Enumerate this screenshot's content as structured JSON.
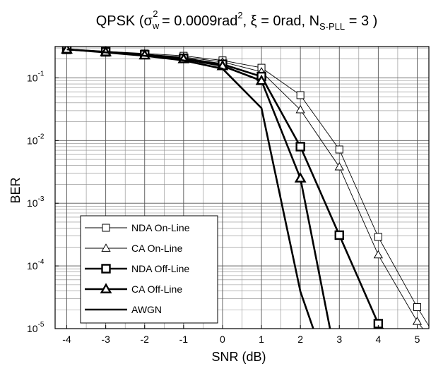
{
  "chart_data": {
    "type": "line",
    "title": {
      "prefix": "QPSK (",
      "sigma": "σ",
      "sigma_sub": "w",
      "sigma_sup": "2",
      "eq1": " = 0.0009rad",
      "rad_sup": "2",
      "xi_part": ", ξ = 0rad, N",
      "n_sub": "S-PLL",
      "suffix": " = 3 )"
    },
    "xlabel": "SNR (dB)",
    "ylabel": "BER",
    "xlim": [
      -4.3,
      5.3
    ],
    "ylim_log10": [
      -5,
      -0.5
    ],
    "y_scale": "log",
    "grid": true,
    "x_ticks": [
      -4,
      -3,
      -2,
      -1,
      0,
      1,
      2,
      3,
      4,
      5
    ],
    "x_tick_labels": [
      "-4",
      "-3",
      "-2",
      "-1",
      "0",
      "1",
      "2",
      "3",
      "4",
      "5"
    ],
    "y_ticks": [
      {
        "base": "10",
        "exp": "-1",
        "log": -1
      },
      {
        "base": "10",
        "exp": "-2",
        "log": -2
      },
      {
        "base": "10",
        "exp": "-3",
        "log": -3
      },
      {
        "base": "10",
        "exp": "-4",
        "log": -4
      },
      {
        "base": "10",
        "exp": "-5",
        "log": -5
      }
    ],
    "legend_position": "lower-left",
    "series": [
      {
        "name": "NDA On-Line",
        "marker": "square",
        "thick": false,
        "x": [
          -4,
          -3,
          -2,
          -1,
          0,
          1,
          2,
          3,
          4,
          5,
          5.3
        ],
        "y": [
          0.285,
          0.265,
          0.245,
          0.225,
          0.19,
          0.145,
          0.053,
          0.0072,
          0.00029,
          2.2e-05,
          1.1e-05
        ]
      },
      {
        "name": "CA On-Line",
        "marker": "triangle",
        "thick": false,
        "x": [
          -4,
          -3,
          -2,
          -1,
          0,
          1,
          2,
          3,
          4,
          5,
          5.3
        ],
        "y": [
          0.285,
          0.262,
          0.24,
          0.215,
          0.18,
          0.125,
          0.031,
          0.0038,
          0.00015,
          1.3e-05,
          7.5e-06
        ]
      },
      {
        "name": "NDA Off-Line",
        "marker": "square",
        "thick": true,
        "x": [
          -4,
          -3,
          -2,
          -1,
          0,
          1,
          2,
          3,
          4,
          4.3
        ],
        "y": [
          0.285,
          0.26,
          0.235,
          0.205,
          0.165,
          0.105,
          0.008,
          0.00031,
          1.2e-05,
          7.5e-06
        ]
      },
      {
        "name": "CA Off-Line",
        "marker": "triangle",
        "thick": true,
        "x": [
          -4,
          -3,
          -2,
          -1,
          0,
          1,
          2,
          2.8
        ],
        "y": [
          0.285,
          0.258,
          0.23,
          0.2,
          0.155,
          0.09,
          0.0025,
          7.5e-06
        ]
      },
      {
        "name": "AWGN",
        "marker": "none",
        "thick": true,
        "x": [
          -4,
          -3,
          -2,
          -1,
          0,
          1,
          2,
          2.4
        ],
        "y": [
          0.285,
          0.255,
          0.225,
          0.19,
          0.14,
          0.033,
          3.9e-05,
          7.5e-06
        ]
      }
    ]
  }
}
